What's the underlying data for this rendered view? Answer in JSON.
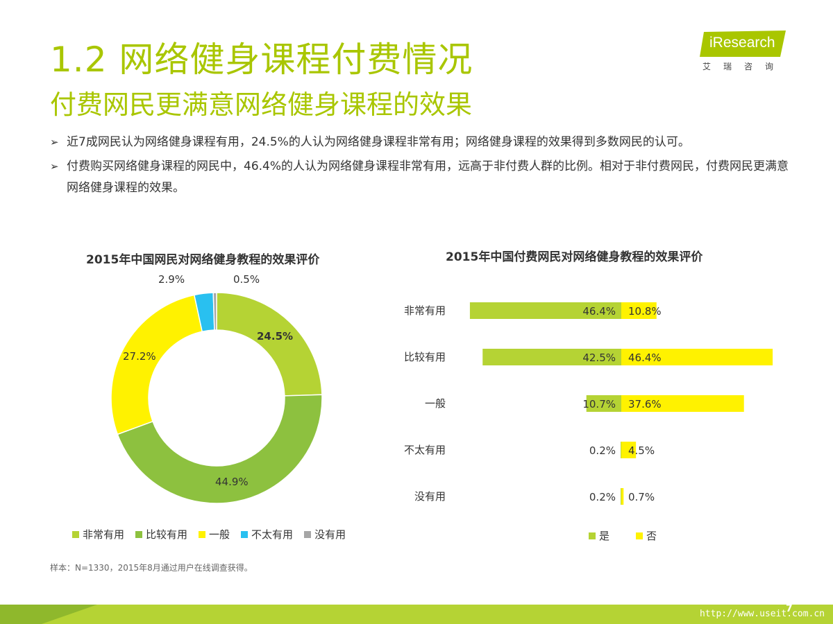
{
  "header": {
    "title": "1.2 网络健身课程付费情况",
    "subtitle": "付费网民更满意网络健身课程的效果"
  },
  "logo": {
    "text": "iResearch",
    "cn": "艾瑞咨询",
    "color": "#a9c600"
  },
  "bullets": [
    "近7成网民认为网络健身课程有用，24.5%的人认为网络健身课程非常有用；网络健身课程的效果得到多数网民的认可。",
    "付费购买网络健身课程的网民中，46.4%的人认为网络健身课程非常有用，远高于非付费人群的比例。相对于非付费网民，付费网民更满意网络健身课程的效果。"
  ],
  "chart_data": [
    {
      "type": "pie",
      "title": "2015年中国网民对网络健身教程的效果评价",
      "categories": [
        "非常有用",
        "比较有用",
        "一般",
        "不太有用",
        "没有用"
      ],
      "values": [
        24.5,
        44.9,
        27.2,
        2.9,
        0.5
      ],
      "labels": [
        "24.5%",
        "44.9%",
        "27.2%",
        "2.9%",
        "0.5%"
      ],
      "colors": [
        "#b5d334",
        "#8dc13f",
        "#fff200",
        "#29c0f0",
        "#a6a6a6"
      ],
      "legend": "bottom"
    },
    {
      "type": "bar",
      "orientation": "horizontal",
      "title": "2015年中国付费网民对网络健身教程的效果评价",
      "categories": [
        "非常有用",
        "比较有用",
        "一般",
        "不太有用",
        "没有用"
      ],
      "series": [
        {
          "name": "是",
          "values": [
            46.4,
            42.5,
            10.7,
            0.2,
            0.2
          ],
          "labels": [
            "46.4%",
            "42.5%",
            "10.7%",
            "0.2%",
            "0.2%"
          ],
          "color": "#b5d334"
        },
        {
          "name": "否",
          "values": [
            10.8,
            46.4,
            37.6,
            4.5,
            0.7
          ],
          "labels": [
            "10.8%",
            "46.4%",
            "37.6%",
            "4.5%",
            "0.7%"
          ],
          "color": "#fff200"
        }
      ],
      "legend": "bottom"
    }
  ],
  "note": "样本：N=1330，2015年8月通过用户在线调查获得。",
  "footer": {
    "url": "http://www.useit.com.cn",
    "page": "7",
    "color": "#b5d334"
  }
}
